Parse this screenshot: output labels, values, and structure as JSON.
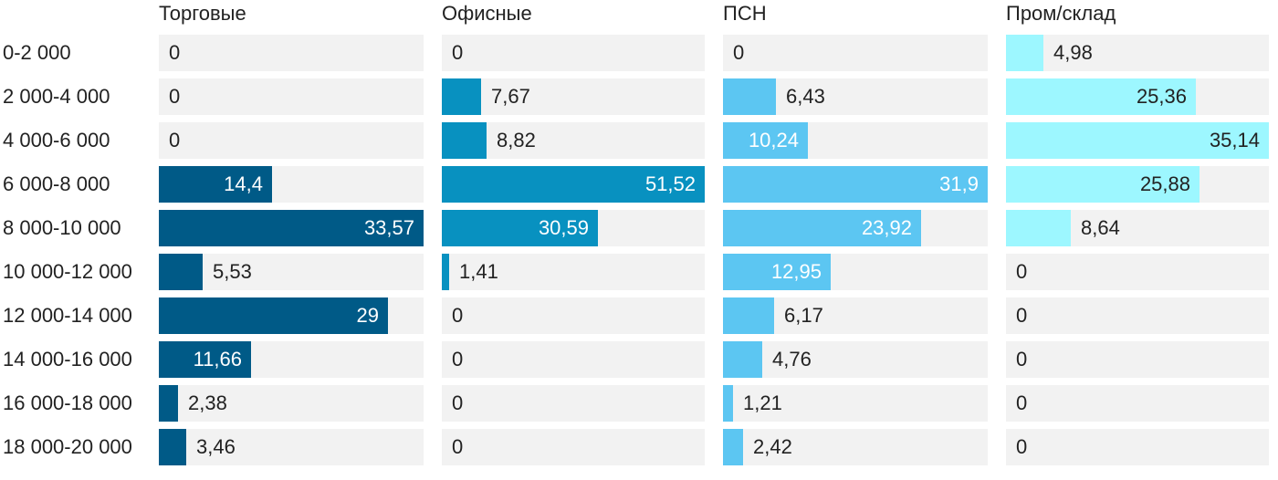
{
  "chart_data": {
    "type": "bar",
    "orientation": "horizontal",
    "layout": "small-multiples",
    "categories": [
      "0-2 000",
      "2 000-4 000",
      "4 000-6 000",
      "6 000-8 000",
      "8 000-10 000",
      "10 000-12 000",
      "12 000-14 000",
      "14 000-16 000",
      "16 000-18 000",
      "18 000-20 000"
    ],
    "series": [
      {
        "name": "Торговые",
        "color": "#005a87",
        "max": 33.57,
        "values": [
          0,
          0,
          0,
          14.4,
          33.57,
          5.53,
          29,
          11.66,
          2.38,
          3.46
        ],
        "labels": [
          "0",
          "0",
          "0",
          "14,4",
          "33,57",
          "5,53",
          "29",
          "11,66",
          "2,38",
          "3,46"
        ]
      },
      {
        "name": "Офисные",
        "color": "#0891c0",
        "max": 51.52,
        "values": [
          0,
          7.67,
          8.82,
          51.52,
          30.59,
          1.41,
          0,
          0,
          0,
          0
        ],
        "labels": [
          "0",
          "7,67",
          "8,82",
          "51,52",
          "30,59",
          "1,41",
          "0",
          "0",
          "0",
          "0"
        ]
      },
      {
        "name": "ПСН",
        "color": "#5cc6f2",
        "max": 31.9,
        "values": [
          0,
          6.43,
          10.24,
          31.9,
          23.92,
          12.95,
          6.17,
          4.76,
          1.21,
          2.42
        ],
        "labels": [
          "0",
          "6,43",
          "10,24",
          "31,9",
          "23,92",
          "12,95",
          "6,17",
          "4,76",
          "1,21",
          "2,42"
        ]
      },
      {
        "name": "Пром/склад",
        "color": "#9df7ff",
        "max": 35.14,
        "values": [
          4.98,
          25.36,
          35.14,
          25.88,
          8.64,
          0,
          0,
          0,
          0,
          0
        ],
        "labels": [
          "4,98",
          "25,36",
          "35,14",
          "25,88",
          "8,64",
          "0",
          "0",
          "0",
          "0",
          "0"
        ]
      }
    ],
    "value_format": "decimal-comma",
    "grid": false,
    "legend": "none"
  }
}
